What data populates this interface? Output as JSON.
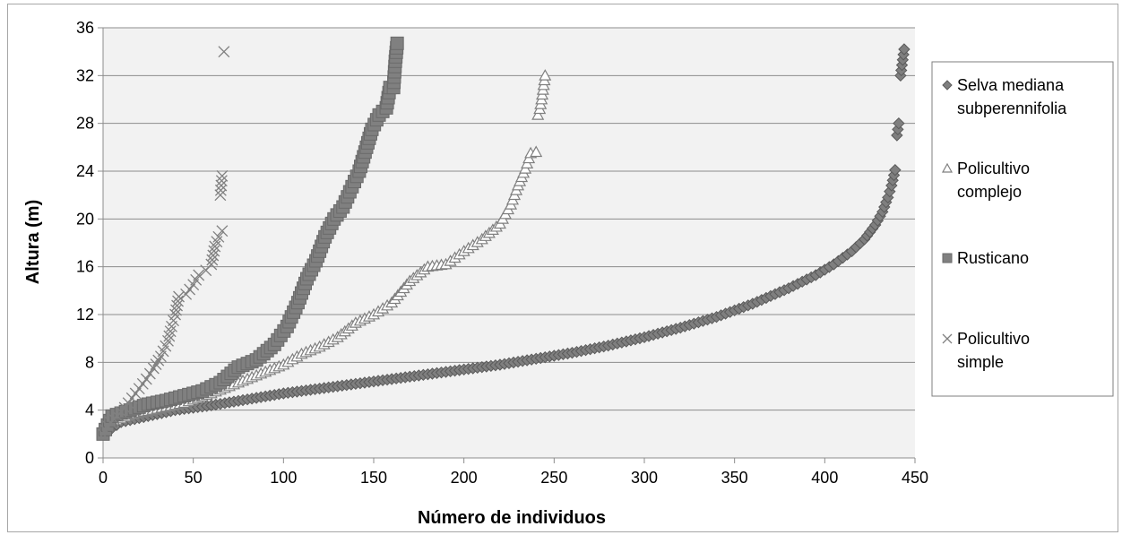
{
  "chart_data": {
    "type": "scatter",
    "xlabel": "Número de individuos",
    "ylabel": "Altura (m)",
    "xlim": [
      0,
      450
    ],
    "ylim": [
      0,
      36
    ],
    "x_ticks": [
      "0",
      "50",
      "100",
      "150",
      "200",
      "250",
      "300",
      "350",
      "400",
      "450"
    ],
    "y_ticks": [
      "0",
      "4",
      "8",
      "12",
      "16",
      "20",
      "24",
      "28",
      "32",
      "36"
    ],
    "grid": "horizontal",
    "legend_position": "right",
    "plot_background": "#f2f2f2",
    "series": [
      {
        "name": "Selva mediana subperennifolia",
        "marker": "diamond",
        "color": "#7f7f7f",
        "points": [
          [
            0,
            2
          ],
          [
            10,
            3
          ],
          [
            25,
            3.5
          ],
          [
            40,
            4
          ],
          [
            60,
            4.4
          ],
          [
            80,
            4.9
          ],
          [
            100,
            5.4
          ],
          [
            120,
            5.8
          ],
          [
            140,
            6.2
          ],
          [
            160,
            6.6
          ],
          [
            180,
            7
          ],
          [
            200,
            7.4
          ],
          [
            220,
            7.8
          ],
          [
            240,
            8.3
          ],
          [
            260,
            8.8
          ],
          [
            280,
            9.4
          ],
          [
            300,
            10.1
          ],
          [
            320,
            10.9
          ],
          [
            340,
            11.8
          ],
          [
            360,
            12.9
          ],
          [
            380,
            14.2
          ],
          [
            395,
            15.3
          ],
          [
            405,
            16.2
          ],
          [
            415,
            17.3
          ],
          [
            422,
            18.3
          ],
          [
            428,
            19.5
          ],
          [
            432,
            20.6
          ],
          [
            435,
            21.8
          ],
          [
            437,
            22.8
          ],
          [
            439,
            24.1
          ],
          [
            440,
            27
          ],
          [
            441,
            28
          ],
          [
            442,
            32
          ],
          [
            444,
            34.2
          ]
        ]
      },
      {
        "name": "Policultivo complejo",
        "marker": "triangle",
        "color": "#7f7f7f",
        "points": [
          [
            0,
            2
          ],
          [
            5,
            3
          ],
          [
            15,
            3.6
          ],
          [
            30,
            4.1
          ],
          [
            45,
            4.6
          ],
          [
            60,
            5.4
          ],
          [
            75,
            6.3
          ],
          [
            90,
            7.2
          ],
          [
            100,
            7.8
          ],
          [
            110,
            8.7
          ],
          [
            120,
            9.3
          ],
          [
            130,
            10.1
          ],
          [
            140,
            11.3
          ],
          [
            150,
            12
          ],
          [
            160,
            13
          ],
          [
            170,
            14.8
          ],
          [
            180,
            16
          ],
          [
            190,
            16.2
          ],
          [
            200,
            17.3
          ],
          [
            210,
            18.3
          ],
          [
            220,
            19.6
          ],
          [
            226,
            21.2
          ],
          [
            230,
            22.8
          ],
          [
            234,
            24.2
          ],
          [
            237,
            25.5
          ],
          [
            240,
            25.6
          ],
          [
            241,
            28.7
          ],
          [
            242,
            29.2
          ],
          [
            243,
            30
          ],
          [
            245,
            32
          ]
        ]
      },
      {
        "name": "Rusticano",
        "marker": "square",
        "color": "#808080",
        "points": [
          [
            0,
            2
          ],
          [
            5,
            3.5
          ],
          [
            15,
            4
          ],
          [
            25,
            4.5
          ],
          [
            35,
            4.8
          ],
          [
            45,
            5.2
          ],
          [
            55,
            5.6
          ],
          [
            65,
            6.3
          ],
          [
            75,
            7.6
          ],
          [
            85,
            8.2
          ],
          [
            95,
            9.5
          ],
          [
            102,
            11
          ],
          [
            108,
            13
          ],
          [
            113,
            15
          ],
          [
            118,
            16.5
          ],
          [
            123,
            18.5
          ],
          [
            128,
            20
          ],
          [
            133,
            21
          ],
          [
            138,
            22.7
          ],
          [
            142,
            24
          ],
          [
            146,
            26
          ],
          [
            149,
            27.5
          ],
          [
            153,
            28.7
          ],
          [
            157,
            29.3
          ],
          [
            159,
            31
          ],
          [
            161,
            31
          ],
          [
            162,
            33.2
          ],
          [
            163,
            34.7
          ]
        ]
      },
      {
        "name": "Policultivo simple",
        "marker": "x",
        "color": "#808080",
        "points": [
          [
            0,
            2
          ],
          [
            4,
            3
          ],
          [
            8,
            3.5
          ],
          [
            12,
            4.2
          ],
          [
            16,
            5
          ],
          [
            20,
            5.8
          ],
          [
            24,
            6.6
          ],
          [
            28,
            7.5
          ],
          [
            32,
            8.5
          ],
          [
            36,
            9.8
          ],
          [
            38,
            11
          ],
          [
            40,
            12
          ],
          [
            42,
            13.5
          ],
          [
            46,
            13.7
          ],
          [
            50,
            14.5
          ],
          [
            53,
            15.3
          ],
          [
            57,
            15.7
          ],
          [
            60,
            16.2
          ],
          [
            62,
            17.7
          ],
          [
            64,
            18.5
          ],
          [
            66,
            19
          ],
          [
            65,
            22
          ],
          [
            66,
            23.6
          ],
          [
            67,
            34
          ]
        ]
      }
    ]
  }
}
